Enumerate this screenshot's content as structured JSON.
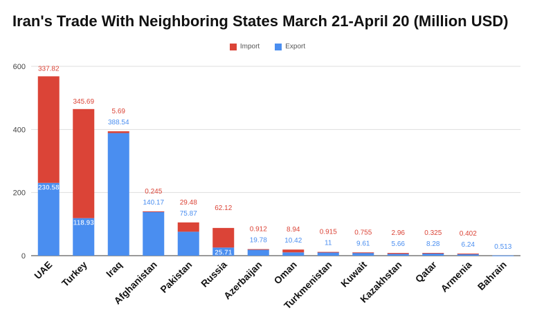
{
  "chart_data": {
    "type": "bar",
    "stacked": true,
    "title": "Iran's Trade With Neighboring States March 21-April 20 (Million USD)",
    "categories": [
      "UAE",
      "Turkey",
      "Iraq",
      "Afghanistan",
      "Pakistan",
      "Russia",
      "Azerbaijan",
      "Oman",
      "Turkmenistan",
      "Kuwait",
      "Kazakhstan",
      "Qatar",
      "Armenia",
      "Bahrain"
    ],
    "series": [
      {
        "name": "Export",
        "color": "#4a8ef0",
        "values": [
          230.58,
          118.93,
          388.54,
          140.17,
          75.87,
          25.71,
          19.78,
          10.42,
          11,
          9.61,
          5.66,
          8.28,
          6.24,
          0.513
        ]
      },
      {
        "name": "Import",
        "color": "#db4437",
        "values": [
          337.82,
          345.69,
          5.69,
          0.245,
          29.48,
          62.12,
          0.912,
          8.94,
          0.915,
          0.755,
          2.96,
          0.325,
          0.402,
          null
        ]
      }
    ],
    "series_labels": {
      "Export": [
        "230.58",
        "118.93",
        "388.54",
        "140.17",
        "75.87",
        "25.71",
        "19.78",
        "10.42",
        "11",
        "9.61",
        "5.66",
        "8.28",
        "6.24",
        "0.513"
      ],
      "Import": [
        "337.82",
        "345.69",
        "5.69",
        "0.245",
        "29.48",
        "62.12",
        "0.912",
        "8.94",
        "0.915",
        "0.755",
        "2.96",
        "0.325",
        "0.402",
        ""
      ]
    },
    "yticks": [
      "0",
      "200",
      "400",
      "600"
    ],
    "ylim": [
      0,
      600
    ],
    "grid": true,
    "legend_position": "top"
  }
}
